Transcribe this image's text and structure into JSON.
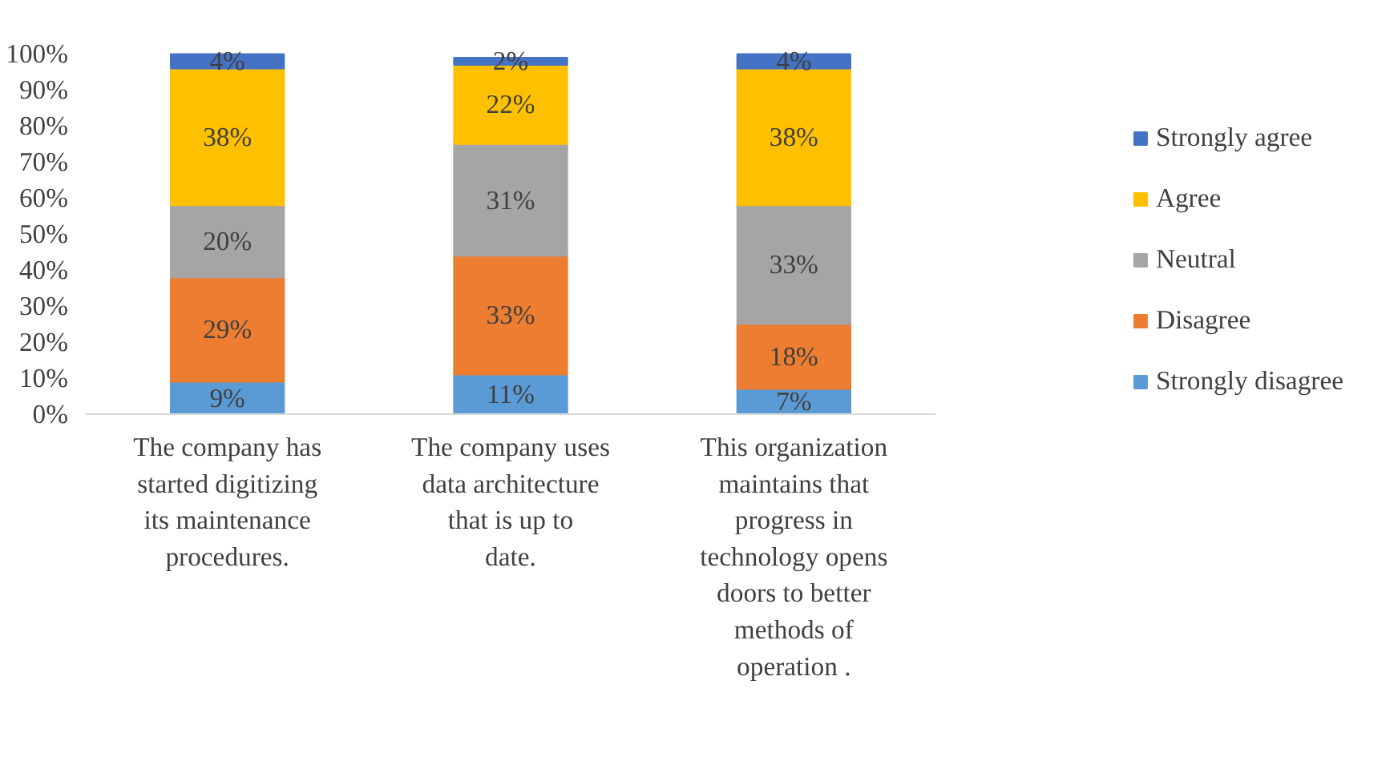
{
  "chart_data": {
    "type": "bar",
    "stacked": true,
    "categories": [
      "The company has started digitizing its maintenance procedures.",
      "The company uses data architecture that is up to date.",
      "This organization maintains that progress in technology opens doors to better methods of operation ."
    ],
    "series": [
      {
        "name": "Strongly disagree",
        "color": "#5b9bd5",
        "values": [
          9,
          11,
          7
        ],
        "value_labels": [
          "9%",
          "11%",
          "7%"
        ]
      },
      {
        "name": "Disagree",
        "color": "#ed7d31",
        "values": [
          29,
          33,
          18
        ],
        "value_labels": [
          "29%",
          "33%",
          "18%"
        ]
      },
      {
        "name": "Neutral",
        "color": "#a5a5a5",
        "values": [
          20,
          31,
          33
        ],
        "value_labels": [
          "20%",
          "31%",
          "33%"
        ]
      },
      {
        "name": "Agree",
        "color": "#ffc000",
        "values": [
          38,
          22,
          38
        ],
        "value_labels": [
          "38%",
          "22%",
          "38%"
        ]
      },
      {
        "name": "Strongly agree",
        "color": "#4472c4",
        "values": [
          4,
          2,
          4
        ],
        "value_labels": [
          "4%",
          "2%",
          "4%"
        ]
      }
    ],
    "ylim": [
      0,
      100
    ],
    "yticks": [
      {
        "value": 0,
        "label": "0%"
      },
      {
        "value": 10,
        "label": "10%"
      },
      {
        "value": 20,
        "label": "20%"
      },
      {
        "value": 30,
        "label": "30%"
      },
      {
        "value": 40,
        "label": "40%"
      },
      {
        "value": 50,
        "label": "50%"
      },
      {
        "value": 60,
        "label": "60%"
      },
      {
        "value": 70,
        "label": "70%"
      },
      {
        "value": 80,
        "label": "80%"
      },
      {
        "value": 90,
        "label": "90%"
      },
      {
        "value": 100,
        "label": "100%"
      }
    ],
    "grid": false,
    "legend": "right"
  }
}
